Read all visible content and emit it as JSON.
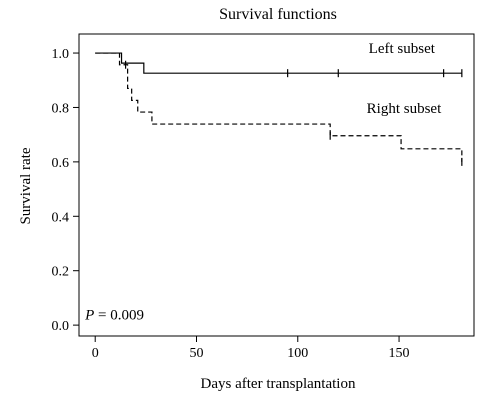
{
  "chart_data": {
    "type": "line",
    "title": "Survival functions",
    "xlabel": "Days after transplantation",
    "ylabel": "Survival rate",
    "xlim": [
      -8,
      187
    ],
    "ylim": [
      -0.04,
      1.07
    ],
    "xticks": [
      0,
      50,
      100,
      150
    ],
    "yticks": [
      0.0,
      0.2,
      0.4,
      0.6,
      0.8,
      1.0
    ],
    "ytick_labels": [
      "0.0",
      "0.2",
      "0.4",
      "0.6",
      "0.8",
      "1.0"
    ],
    "grid": false,
    "legend": "none",
    "series": [
      {
        "name": "Left subset",
        "style": "solid",
        "steps": [
          [
            0,
            1.0
          ],
          [
            13,
            0.963
          ],
          [
            17,
            0.963
          ],
          [
            24,
            0.926
          ],
          [
            181,
            0.926
          ]
        ],
        "censored": [
          [
            95,
            0.926
          ],
          [
            120,
            0.926
          ],
          [
            172,
            0.926
          ],
          [
            181,
            0.926
          ]
        ]
      },
      {
        "name": "Right subset",
        "style": "dashed",
        "steps": [
          [
            0,
            1.0
          ],
          [
            12,
            0.957
          ],
          [
            16,
            0.87
          ],
          [
            18,
            0.826
          ],
          [
            21,
            0.783
          ],
          [
            28,
            0.739
          ],
          [
            116,
            0.696
          ],
          [
            151,
            0.648
          ],
          [
            181,
            0.6
          ]
        ],
        "censored": [
          [
            15,
            0.957
          ],
          [
            116,
            0.696
          ],
          [
            181,
            0.6
          ]
        ]
      }
    ],
    "annotations": [
      {
        "text_prefix": "P",
        "text_suffix": " = 0.009",
        "x": -5,
        "y": 0.02
      },
      {
        "text": "Left subset",
        "x": 135,
        "y": 1.0
      },
      {
        "text": "Right subset",
        "x": 134,
        "y": 0.78
      }
    ]
  }
}
